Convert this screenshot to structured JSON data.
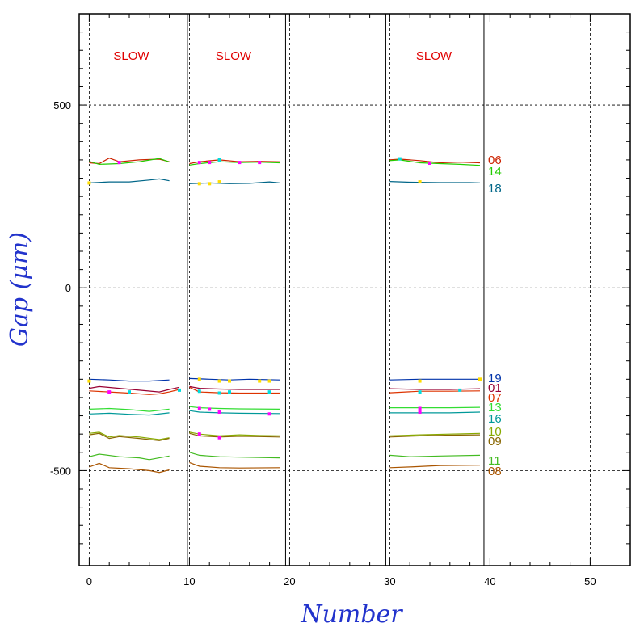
{
  "chart_data": {
    "type": "line",
    "xlabel": "Number",
    "ylabel": "Gap (μm)",
    "xlim": [
      -1,
      54
    ],
    "ylim": [
      -760,
      750
    ],
    "xticks": [
      "0",
      "10",
      "20",
      "30",
      "40",
      "50"
    ],
    "yticks": [
      "500",
      "0",
      "-500"
    ],
    "grid": true,
    "annotations": [
      "SLOW",
      "SLOW",
      "SLOW"
    ],
    "annotation_x": [
      4.2,
      14.4,
      34.4
    ],
    "annotation_y": 635,
    "run_boundaries": [
      9.8,
      19.6,
      29.6,
      39.4
    ],
    "segments": [
      [
        0,
        9.7
      ],
      [
        10,
        19.2
      ],
      [
        30,
        39.2
      ]
    ],
    "series": [
      {
        "name": "06",
        "color": "#cc2200",
        "values": [
          [
            0,
            342
          ],
          [
            1,
            340
          ],
          [
            2,
            355
          ],
          [
            3,
            345
          ],
          [
            5,
            350
          ],
          [
            7,
            352
          ],
          [
            8,
            345
          ],
          [
            10,
            340
          ],
          [
            11,
            345
          ],
          [
            13,
            350
          ],
          [
            15,
            345
          ],
          [
            17,
            346
          ],
          [
            19,
            345
          ],
          [
            30,
            350
          ],
          [
            31,
            352
          ],
          [
            33,
            348
          ],
          [
            35,
            342
          ],
          [
            37,
            344
          ],
          [
            39,
            342
          ]
        ]
      },
      {
        "name": "14",
        "color": "#22cc00",
        "values": [
          [
            0,
            346
          ],
          [
            1,
            338
          ],
          [
            3,
            340
          ],
          [
            5,
            345
          ],
          [
            7,
            354
          ],
          [
            8,
            344
          ],
          [
            10,
            336
          ],
          [
            11,
            340
          ],
          [
            13,
            345
          ],
          [
            15,
            343
          ],
          [
            17,
            344
          ],
          [
            19,
            342
          ],
          [
            30,
            348
          ],
          [
            31,
            350
          ],
          [
            33,
            342
          ],
          [
            35,
            340
          ],
          [
            37,
            338
          ],
          [
            39,
            335
          ]
        ]
      },
      {
        "name": "18",
        "color": "#006688",
        "values": [
          [
            0,
            287
          ],
          [
            2,
            290
          ],
          [
            4,
            290
          ],
          [
            6,
            295
          ],
          [
            7,
            298
          ],
          [
            8,
            293
          ],
          [
            10,
            285
          ],
          [
            12,
            287
          ],
          [
            14,
            285
          ],
          [
            16,
            286
          ],
          [
            18,
            290
          ],
          [
            19,
            287
          ],
          [
            30,
            291
          ],
          [
            32,
            289
          ],
          [
            35,
            288
          ],
          [
            38,
            288
          ],
          [
            39,
            287
          ]
        ]
      },
      {
        "name": "19",
        "color": "#0033aa",
        "values": [
          [
            0,
            -250
          ],
          [
            2,
            -252
          ],
          [
            4,
            -255
          ],
          [
            6,
            -255
          ],
          [
            8,
            -252
          ],
          [
            10,
            -248
          ],
          [
            12,
            -250
          ],
          [
            14,
            -252
          ],
          [
            16,
            -250
          ],
          [
            19,
            -252
          ],
          [
            30,
            -252
          ],
          [
            33,
            -250
          ],
          [
            36,
            -250
          ],
          [
            39,
            -250
          ]
        ]
      },
      {
        "name": "01",
        "color": "#990033",
        "values": [
          [
            0,
            -275
          ],
          [
            1,
            -270
          ],
          [
            3,
            -275
          ],
          [
            5,
            -280
          ],
          [
            7,
            -285
          ],
          [
            8,
            -278
          ],
          [
            9,
            -272
          ],
          [
            10,
            -270
          ],
          [
            11,
            -275
          ],
          [
            13,
            -277
          ],
          [
            15,
            -278
          ],
          [
            19,
            -278
          ],
          [
            30,
            -276
          ],
          [
            33,
            -278
          ],
          [
            36,
            -278
          ],
          [
            39,
            -276
          ]
        ]
      },
      {
        "name": "07",
        "color": "#dd3300",
        "values": [
          [
            0,
            -282
          ],
          [
            2,
            -285
          ],
          [
            4,
            -288
          ],
          [
            6,
            -292
          ],
          [
            7,
            -290
          ],
          [
            8,
            -285
          ],
          [
            9,
            -278
          ],
          [
            10,
            -272
          ],
          [
            11,
            -285
          ],
          [
            13,
            -287
          ],
          [
            15,
            -288
          ],
          [
            19,
            -288
          ],
          [
            30,
            -287
          ],
          [
            33,
            -283
          ],
          [
            36,
            -283
          ],
          [
            39,
            -282
          ]
        ]
      },
      {
        "name": "13",
        "color": "#33dd33",
        "values": [
          [
            0,
            -332
          ],
          [
            2,
            -330
          ],
          [
            4,
            -333
          ],
          [
            6,
            -338
          ],
          [
            8,
            -332
          ],
          [
            10,
            -325
          ],
          [
            11,
            -328
          ],
          [
            13,
            -330
          ],
          [
            15,
            -331
          ],
          [
            19,
            -332
          ],
          [
            30,
            -328
          ],
          [
            33,
            -328
          ],
          [
            36,
            -328
          ],
          [
            39,
            -327
          ]
        ]
      },
      {
        "name": "16",
        "color": "#009999",
        "values": [
          [
            0,
            -345
          ],
          [
            2,
            -343
          ],
          [
            4,
            -346
          ],
          [
            6,
            -348
          ],
          [
            8,
            -342
          ],
          [
            10,
            -336
          ],
          [
            11,
            -340
          ],
          [
            13,
            -342
          ],
          [
            15,
            -343
          ],
          [
            19,
            -344
          ],
          [
            30,
            -342
          ],
          [
            33,
            -342
          ],
          [
            36,
            -342
          ],
          [
            39,
            -340
          ]
        ]
      },
      {
        "name": "10",
        "color": "#88aa00",
        "values": [
          [
            0,
            -398
          ],
          [
            1,
            -395
          ],
          [
            2,
            -408
          ],
          [
            3,
            -404
          ],
          [
            5,
            -408
          ],
          [
            7,
            -415
          ],
          [
            8,
            -410
          ],
          [
            10,
            -395
          ],
          [
            11,
            -400
          ],
          [
            13,
            -405
          ],
          [
            15,
            -402
          ],
          [
            17,
            -404
          ],
          [
            19,
            -405
          ],
          [
            30,
            -405
          ],
          [
            33,
            -402
          ],
          [
            36,
            -400
          ],
          [
            39,
            -398
          ]
        ]
      },
      {
        "name": "09",
        "color": "#886600",
        "values": [
          [
            0,
            -402
          ],
          [
            1,
            -398
          ],
          [
            2,
            -412
          ],
          [
            3,
            -407
          ],
          [
            5,
            -412
          ],
          [
            7,
            -418
          ],
          [
            8,
            -412
          ],
          [
            10,
            -398
          ],
          [
            11,
            -405
          ],
          [
            13,
            -408
          ],
          [
            15,
            -406
          ],
          [
            17,
            -407
          ],
          [
            19,
            -408
          ],
          [
            30,
            -408
          ],
          [
            33,
            -405
          ],
          [
            36,
            -403
          ],
          [
            39,
            -402
          ]
        ]
      },
      {
        "name": "11",
        "color": "#44bb22",
        "values": [
          [
            0,
            -462
          ],
          [
            1,
            -455
          ],
          [
            3,
            -462
          ],
          [
            5,
            -465
          ],
          [
            6,
            -470
          ],
          [
            8,
            -460
          ],
          [
            10,
            -450
          ],
          [
            11,
            -458
          ],
          [
            13,
            -462
          ],
          [
            15,
            -463
          ],
          [
            19,
            -465
          ],
          [
            30,
            -458
          ],
          [
            32,
            -462
          ],
          [
            35,
            -460
          ],
          [
            39,
            -458
          ]
        ]
      },
      {
        "name": "08",
        "color": "#aa5500",
        "values": [
          [
            0,
            -490
          ],
          [
            1,
            -480
          ],
          [
            2,
            -492
          ],
          [
            4,
            -495
          ],
          [
            6,
            -500
          ],
          [
            7,
            -505
          ],
          [
            8,
            -498
          ],
          [
            10,
            -478
          ],
          [
            11,
            -488
          ],
          [
            13,
            -492
          ],
          [
            15,
            -493
          ],
          [
            19,
            -492
          ],
          [
            30,
            -492
          ],
          [
            32,
            -490
          ],
          [
            35,
            -486
          ],
          [
            39,
            -485
          ]
        ]
      }
    ],
    "markers": [
      {
        "color": "#ff00ff",
        "points": [
          [
            3,
            343
          ],
          [
            11,
            343
          ],
          [
            12,
            343
          ],
          [
            15,
            343
          ],
          [
            17,
            343
          ],
          [
            34,
            341
          ],
          [
            2,
            -285
          ],
          [
            11,
            -330
          ],
          [
            12,
            -332
          ],
          [
            13,
            -340
          ],
          [
            18,
            -345
          ],
          [
            33,
            -330
          ],
          [
            33,
            -340
          ],
          [
            11,
            -400
          ],
          [
            13,
            -410
          ]
        ]
      },
      {
        "color": "#ffdd00",
        "points": [
          [
            0,
            287
          ],
          [
            11,
            285
          ],
          [
            12,
            285
          ],
          [
            13,
            290
          ],
          [
            33,
            290
          ],
          [
            0,
            -255
          ],
          [
            11,
            -250
          ],
          [
            13,
            -255
          ],
          [
            14,
            -255
          ],
          [
            17,
            -255
          ],
          [
            18,
            -255
          ],
          [
            33,
            -255
          ],
          [
            39,
            -250
          ]
        ]
      },
      {
        "color": "#00dddd",
        "points": [
          [
            13,
            350
          ],
          [
            31,
            353
          ],
          [
            4,
            -285
          ],
          [
            9,
            -280
          ],
          [
            11,
            -283
          ],
          [
            13,
            -288
          ],
          [
            14,
            -285
          ],
          [
            18,
            -285
          ],
          [
            33,
            -285
          ],
          [
            37,
            -280
          ]
        ]
      }
    ]
  }
}
